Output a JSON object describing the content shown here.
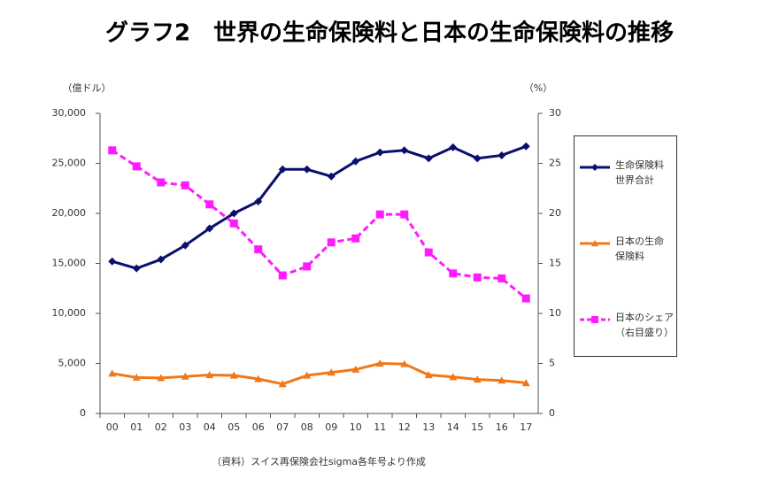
{
  "chart_data": {
    "type": "line",
    "title": "グラフ2　世界の生命保険料と日本の生命保険料の推移",
    "y_label": "（億ドル）",
    "y2_label": "（%）",
    "source": "（資料）スイス再保険会社sigma各年号より作成",
    "categories": [
      "00",
      "01",
      "02",
      "03",
      "04",
      "05",
      "06",
      "07",
      "08",
      "09",
      "10",
      "11",
      "12",
      "13",
      "14",
      "15",
      "16",
      "17"
    ],
    "ylim": [
      0,
      30000
    ],
    "yticks": [
      0,
      {
        "value": 5000,
        "label": "5,000"
      },
      {
        "value": 10000,
        "label": "10,000"
      },
      {
        "value": 15000,
        "label": "15,000"
      },
      {
        "value": 20000,
        "label": "20,000"
      },
      {
        "value": 25000,
        "label": "25,000"
      },
      {
        "value": 30000,
        "label": "30,000"
      }
    ],
    "y2lim": [
      0,
      30
    ],
    "y2ticks": [
      0,
      5,
      10,
      15,
      20,
      25,
      30
    ],
    "legend": "right",
    "series": [
      {
        "name": "生命保険料\n世界合計",
        "color": "#0a0f6e",
        "marker": "diamond",
        "values": [
          15200,
          14500,
          15400,
          16800,
          18500,
          20000,
          21200,
          24400,
          24400,
          23700,
          25200,
          26100,
          26300,
          25500,
          26600,
          25500,
          25800,
          26700
        ]
      },
      {
        "name": "日本の生命\n保険料",
        "color": "#f07818",
        "marker": "triangle",
        "values": [
          4000,
          3600,
          3550,
          3700,
          3850,
          3800,
          3450,
          2950,
          3800,
          4100,
          4400,
          5000,
          4950,
          3850,
          3650,
          3400,
          3300,
          3050
        ]
      },
      {
        "name": "日本のシェア\n（右目盛り）",
        "color": "#ff1aff",
        "marker": "square",
        "axis": "y2",
        "dashed": true,
        "values": [
          26.3,
          24.7,
          23.1,
          22.8,
          20.9,
          19.0,
          16.4,
          13.8,
          14.7,
          17.1,
          17.5,
          19.9,
          19.9,
          16.1,
          14.0,
          13.6,
          13.5,
          11.5
        ]
      }
    ]
  }
}
